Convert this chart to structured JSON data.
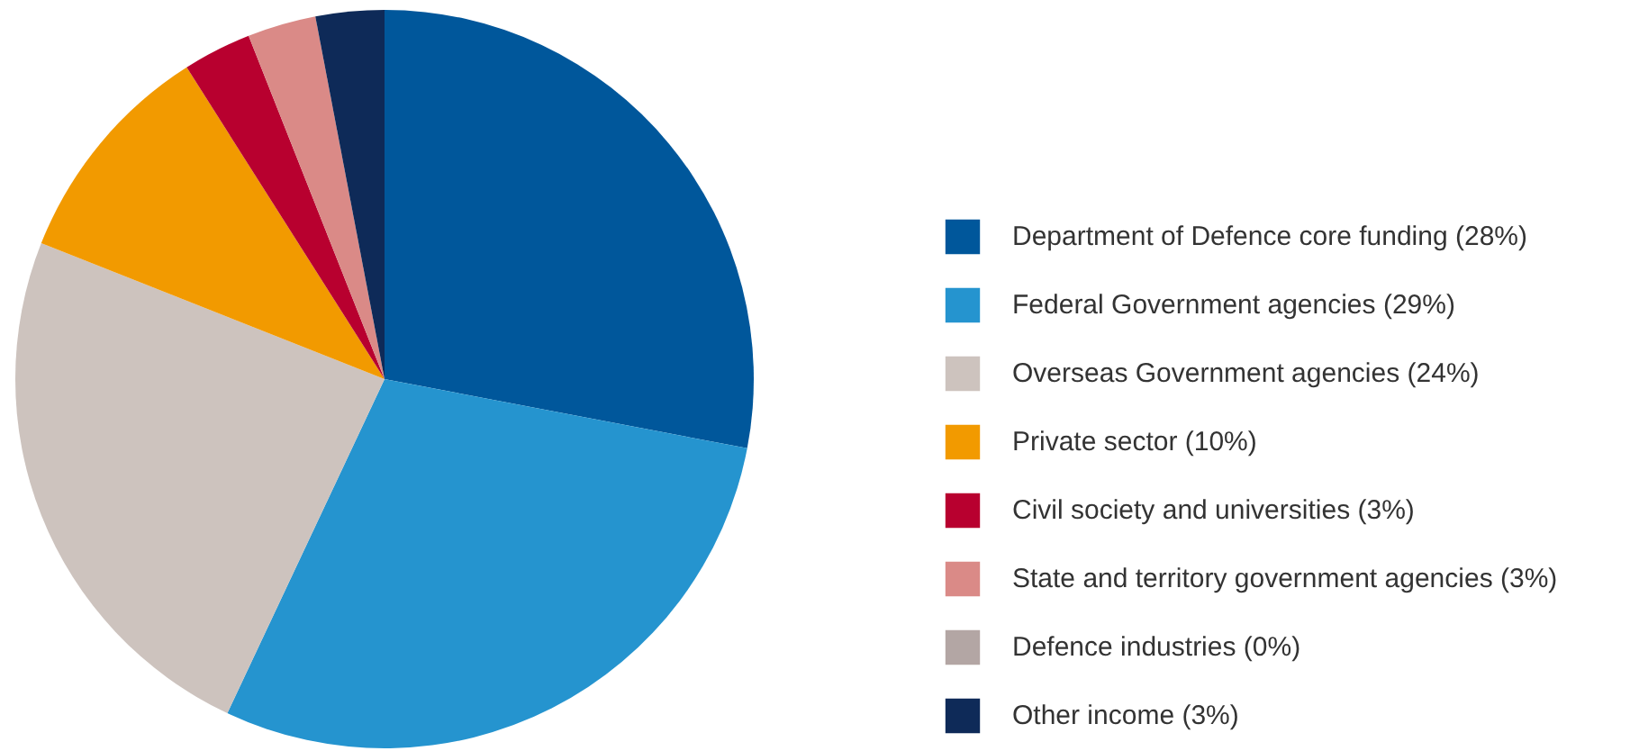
{
  "chart_data": {
    "type": "pie",
    "categories": [
      "Department of Defence core funding",
      "Federal Government agencies",
      "Overseas Government agencies",
      "Private sector",
      "Civil society and universities",
      "State and territory government agencies",
      "Defence industries",
      "Other income"
    ],
    "values": [
      28,
      29,
      24,
      10,
      3,
      3,
      0,
      3
    ],
    "value_labels": [
      "(28%)",
      "(29%)",
      "(24%)",
      "(10%)",
      "(3%)",
      "(3%)",
      "(0%)",
      "(3%)"
    ],
    "colors": [
      "#00579b",
      "#2594cf",
      "#cdc3be",
      "#f29a00",
      "#b8002f",
      "#da8a87",
      "#b3a6a4",
      "#0e2a58"
    ],
    "legend": "right"
  }
}
